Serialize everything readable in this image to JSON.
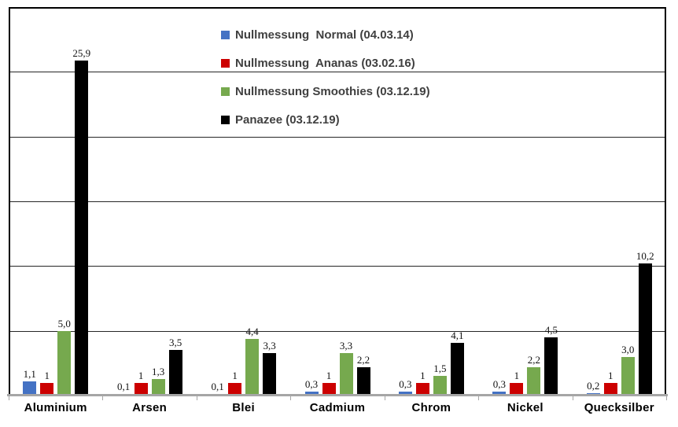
{
  "chart_data": {
    "type": "bar",
    "title": "",
    "categories": [
      "Aluminium",
      "Arsen",
      "Blei",
      "Cadmium",
      "Chrom",
      "Nickel",
      "Quecksilber"
    ],
    "series": [
      {
        "name": "Nullmessung  Normal (04.03.14)",
        "color": "#4472C4",
        "values": [
          1.1,
          0.1,
          0.1,
          0.3,
          0.3,
          0.3,
          0.2
        ],
        "labels": [
          "1,1",
          "0,1",
          "0,1",
          "0,3",
          "0,3",
          "0,3",
          "0,2"
        ]
      },
      {
        "name": "Nullmessung  Ananas (03.02.16)",
        "color": "#CC0000",
        "values": [
          1,
          1,
          1,
          1,
          1,
          1,
          1
        ],
        "labels": [
          "1",
          "1",
          "1",
          "1",
          "1",
          "1",
          "1"
        ]
      },
      {
        "name": "Nullmessung Smoothies (03.12.19)",
        "color": "#76A94E",
        "values": [
          5.0,
          1.3,
          4.4,
          3.3,
          1.5,
          2.2,
          3.0
        ],
        "labels": [
          "5,0",
          "1,3",
          "4,4",
          "3,3",
          "1,5",
          "2,2",
          "3,0"
        ]
      },
      {
        "name": "Panazee (03.12.19)",
        "color": "#000000",
        "values": [
          25.9,
          3.5,
          3.3,
          2.2,
          4.1,
          4.5,
          10.2
        ],
        "labels": [
          "25,9",
          "3,5",
          "3,3",
          "2,2",
          "4,1",
          "4,5",
          "10,2"
        ]
      }
    ],
    "xlabel": "",
    "ylabel": "",
    "ylim": [
      0,
      30
    ],
    "grid_interval": 5,
    "grid": true,
    "y_tick_labels_visible": false,
    "legend_position": "top-center-inside",
    "axis_line_color": "#A6A6A6",
    "gridline_color": "#262626",
    "data_label_decimal_separator": ","
  }
}
